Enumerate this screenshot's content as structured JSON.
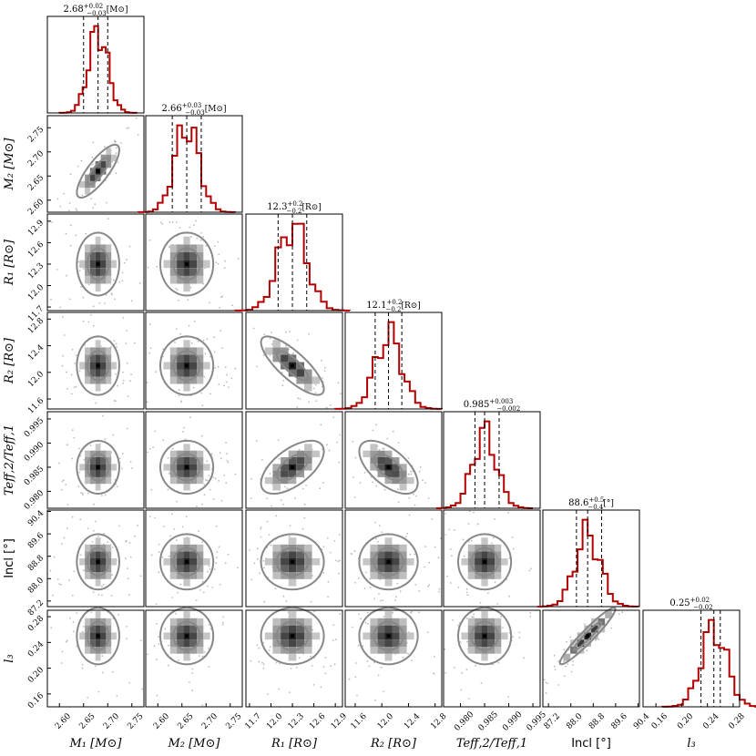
{
  "chart_data": {
    "type": "corner",
    "colors": {
      "hist": "#b30000",
      "contour": "#888888",
      "quantile": "#000000",
      "points": "#bbbbbb"
    },
    "parameters": [
      {
        "label": "M_1 [M_⊙]",
        "axis_text": "M₁ [M⊙]",
        "ticks": [
          "2.60",
          "2.65",
          "2.70",
          "2.75"
        ],
        "tick_values": [
          2.6,
          2.65,
          2.7,
          2.75
        ],
        "range": [
          2.575,
          2.775
        ],
        "median": 2.68,
        "lower": 2.65,
        "upper": 2.7,
        "sigma": 0.02,
        "title": "2.68⁺⁰·⁰²₋₀.₀₃ [M⊙]",
        "title_main": "2.68",
        "title_sup": "+0.02",
        "title_sub": "−0.03",
        "title_unit": "[M⊙]"
      },
      {
        "label": "M_2 [M_⊙]",
        "axis_text": "M₂ [M⊙]",
        "ticks": [
          "2.60",
          "2.65",
          "2.70",
          "2.75"
        ],
        "tick_values": [
          2.6,
          2.65,
          2.7,
          2.75
        ],
        "range": [
          2.575,
          2.775
        ],
        "median": 2.66,
        "lower": 2.63,
        "upper": 2.69,
        "sigma": 0.025,
        "title_main": "2.66",
        "title_sup": "+0.03",
        "title_sub": "−0.03",
        "title_unit": "[M⊙]"
      },
      {
        "label": "R_1 [R_⊙]",
        "axis_text": "R₁ [R⊙]",
        "ticks": [
          "11.7",
          "12.0",
          "12.3",
          "12.6",
          "12.9"
        ],
        "tick_values": [
          11.7,
          12.0,
          12.3,
          12.6,
          12.9
        ],
        "range": [
          11.65,
          13.0
        ],
        "median": 12.3,
        "lower": 12.1,
        "upper": 12.5,
        "sigma": 0.2,
        "title_main": "12.3",
        "title_sup": "+0.2",
        "title_sub": "−0.2",
        "title_unit": "[R⊙]"
      },
      {
        "label": "R_2 [R_⊙]",
        "axis_text": "R₂ [R⊙]",
        "ticks": [
          "11.6",
          "12.0",
          "12.4",
          "12.8"
        ],
        "tick_values": [
          11.6,
          12.0,
          12.4,
          12.8
        ],
        "range": [
          11.45,
          12.9
        ],
        "median": 12.1,
        "lower": 11.9,
        "upper": 12.3,
        "sigma": 0.2,
        "title_main": "12.1",
        "title_sup": "+0.2",
        "title_sub": "−0.2",
        "title_unit": "[R⊙]"
      },
      {
        "label": "T_eff,2/T_eff,1",
        "axis_text": "Teff,2/Teff,1",
        "ticks": [
          "0.980",
          "0.985",
          "0.990",
          "0.995"
        ],
        "tick_values": [
          0.98,
          0.985,
          0.99,
          0.995
        ],
        "range": [
          0.9765,
          0.9965
        ],
        "median": 0.985,
        "lower": 0.983,
        "upper": 0.988,
        "sigma": 0.0025,
        "title_main": "0.985",
        "title_sup": "+0.003",
        "title_sub": "−0.002",
        "title_unit": ""
      },
      {
        "label": "Incl [°]",
        "axis_text": "Incl [°]",
        "ticks": [
          "87.2",
          "88.0",
          "88.8",
          "89.6",
          "90.4"
        ],
        "tick_values": [
          87.2,
          88.0,
          88.8,
          89.6,
          90.4
        ],
        "range": [
          87.0,
          90.45
        ],
        "median": 88.6,
        "lower": 88.2,
        "upper": 89.1,
        "sigma": 0.45,
        "title_main": "88.6",
        "title_sup": "+0.5",
        "title_sub": "−0.4",
        "title_unit": "[°]"
      },
      {
        "label": "l_3",
        "axis_text": "l₃",
        "ticks": [
          "0.16",
          "0.20",
          "0.24",
          "0.28"
        ],
        "tick_values": [
          0.16,
          0.2,
          0.24,
          0.28
        ],
        "range": [
          0.14,
          0.29
        ],
        "median": 0.25,
        "lower": 0.23,
        "upper": 0.26,
        "sigma": 0.02,
        "title_main": "0.25",
        "title_sup": "+0.02",
        "title_sub": "−0.02",
        "title_unit": ""
      }
    ],
    "correlations": [
      [
        1,
        0.8,
        0.0,
        0.0,
        0.0,
        0.0,
        0.0
      ],
      [
        0.8,
        1,
        0.0,
        0.0,
        0.0,
        0.0,
        0.0
      ],
      [
        0.0,
        0.0,
        1,
        -0.8,
        0.6,
        0.0,
        0.0
      ],
      [
        0.0,
        0.0,
        -0.8,
        1,
        -0.6,
        0.0,
        0.0
      ],
      [
        0.0,
        0.0,
        0.6,
        -0.6,
        1,
        0.0,
        0.0
      ],
      [
        0.0,
        0.0,
        0.0,
        0.0,
        0.0,
        1,
        0.95
      ],
      [
        0.0,
        0.0,
        0.0,
        0.0,
        0.0,
        0.95,
        1
      ]
    ]
  }
}
